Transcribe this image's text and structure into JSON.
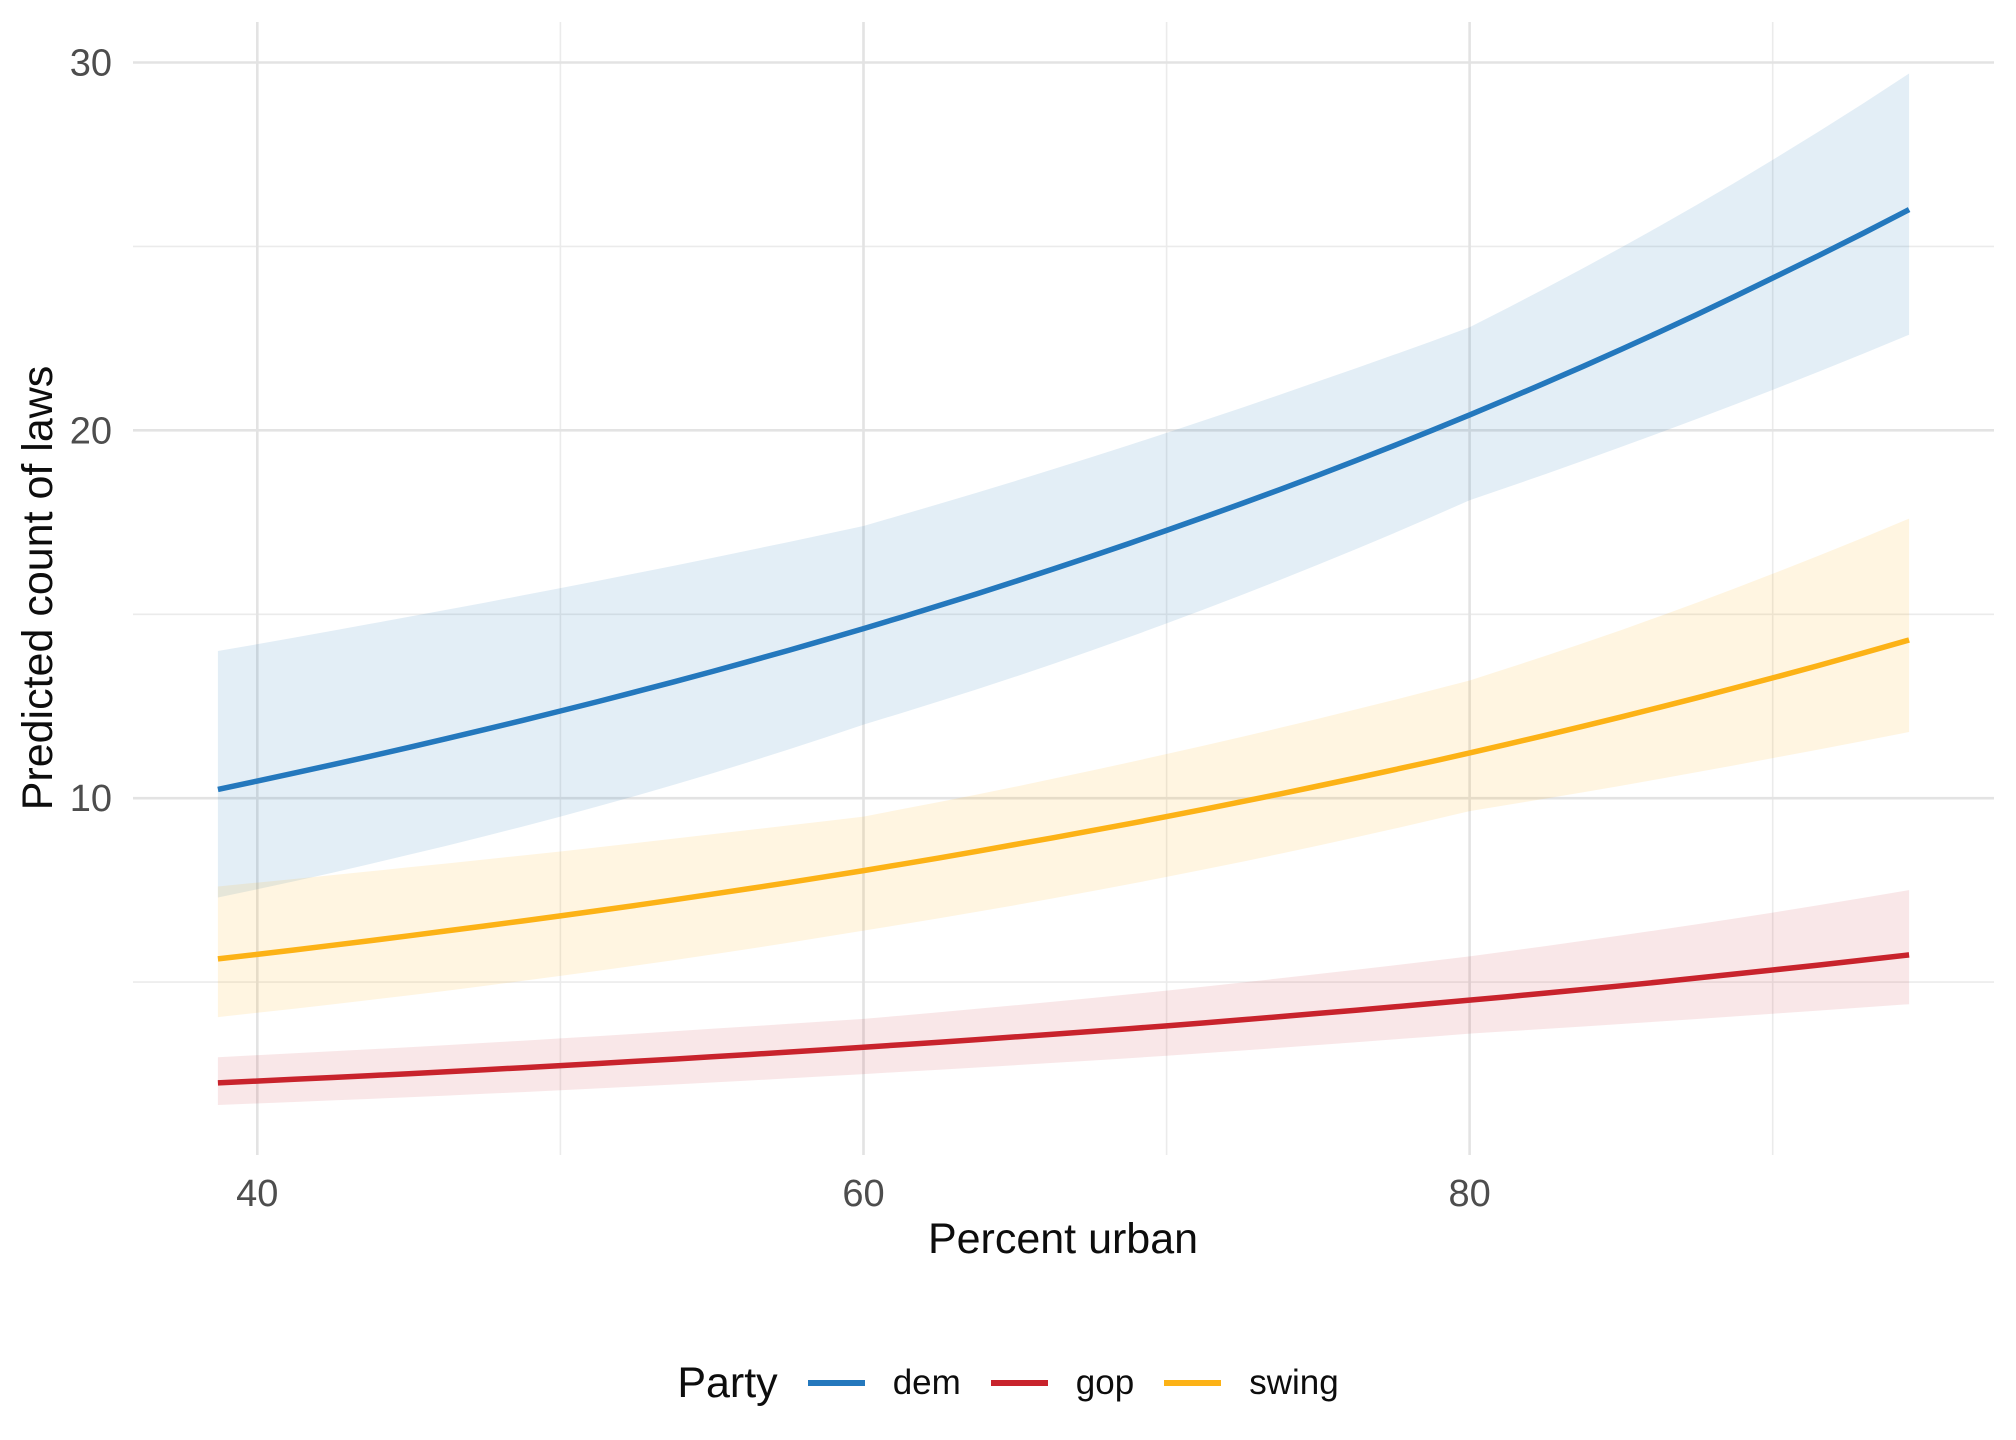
{
  "chart_data": {
    "type": "line",
    "title": "",
    "xlabel": "Percent urban",
    "ylabel": "Predicted count of laws",
    "grid": true,
    "legend_position": "bottom",
    "x_axis": {
      "tick_labels": [
        "40",
        "60",
        "80"
      ],
      "ticks": [
        40,
        60,
        80
      ],
      "minor_ticks": [
        50,
        70,
        90
      ],
      "range": [
        35.9,
        97.3
      ]
    },
    "y_axis": {
      "tick_labels": [
        "10",
        "20",
        "30"
      ],
      "ticks": [
        10,
        20,
        30
      ],
      "minor_ticks": [
        5,
        15,
        25
      ],
      "range": [
        0.3,
        31.1
      ]
    },
    "x": [
      38.7,
      45,
      50,
      55,
      60,
      65,
      70,
      75,
      80,
      85,
      90,
      94.5
    ],
    "series": [
      {
        "name": "dem",
        "color": "#2478bd",
        "band_opacity": 0.13,
        "values": [
          10.24,
          11.38,
          12.37,
          13.44,
          14.61,
          15.89,
          17.28,
          18.78,
          20.42,
          22.2,
          24.14,
          26.0
        ],
        "band_low": [
          7.3,
          8.46,
          9.5,
          10.67,
          12.0,
          13.3,
          14.75,
          16.35,
          18.1,
          19.55,
          21.1,
          22.6
        ],
        "band_high": [
          14.0,
          14.93,
          15.71,
          16.53,
          17.4,
          18.62,
          19.93,
          21.33,
          22.8,
          24.97,
          27.35,
          29.7
        ]
      },
      {
        "name": "gop",
        "color": "#c8232c",
        "band_opacity": 0.11,
        "values": [
          2.26,
          2.51,
          2.73,
          2.97,
          3.23,
          3.51,
          3.81,
          4.15,
          4.51,
          4.9,
          5.33,
          5.74
        ],
        "band_low": [
          1.66,
          1.87,
          2.06,
          2.27,
          2.5,
          2.74,
          3.0,
          3.29,
          3.6,
          3.86,
          4.14,
          4.4
        ],
        "band_high": [
          2.96,
          3.23,
          3.47,
          3.73,
          4.0,
          4.37,
          4.77,
          5.22,
          5.7,
          6.27,
          6.89,
          7.5
        ]
      },
      {
        "name": "swing",
        "color": "#fcb216",
        "band_opacity": 0.13,
        "values": [
          5.63,
          6.26,
          6.8,
          7.39,
          8.03,
          8.74,
          9.5,
          10.33,
          11.23,
          12.21,
          13.27,
          14.3
        ],
        "band_low": [
          4.05,
          4.64,
          5.17,
          5.75,
          6.4,
          7.09,
          7.86,
          8.71,
          9.65,
          10.34,
          11.09,
          11.8
        ],
        "band_high": [
          7.6,
          8.12,
          8.55,
          9.02,
          9.5,
          10.31,
          11.2,
          12.16,
          13.2,
          14.57,
          16.1,
          17.6
        ]
      }
    ],
    "legend": {
      "title": "Party",
      "entries": [
        "dem",
        "gop",
        "swing"
      ]
    }
  },
  "style": {
    "grid_major_color": "#e3e3e3",
    "grid_minor_color": "#ebebeb",
    "tick_label_color": "#4d4d4d"
  }
}
